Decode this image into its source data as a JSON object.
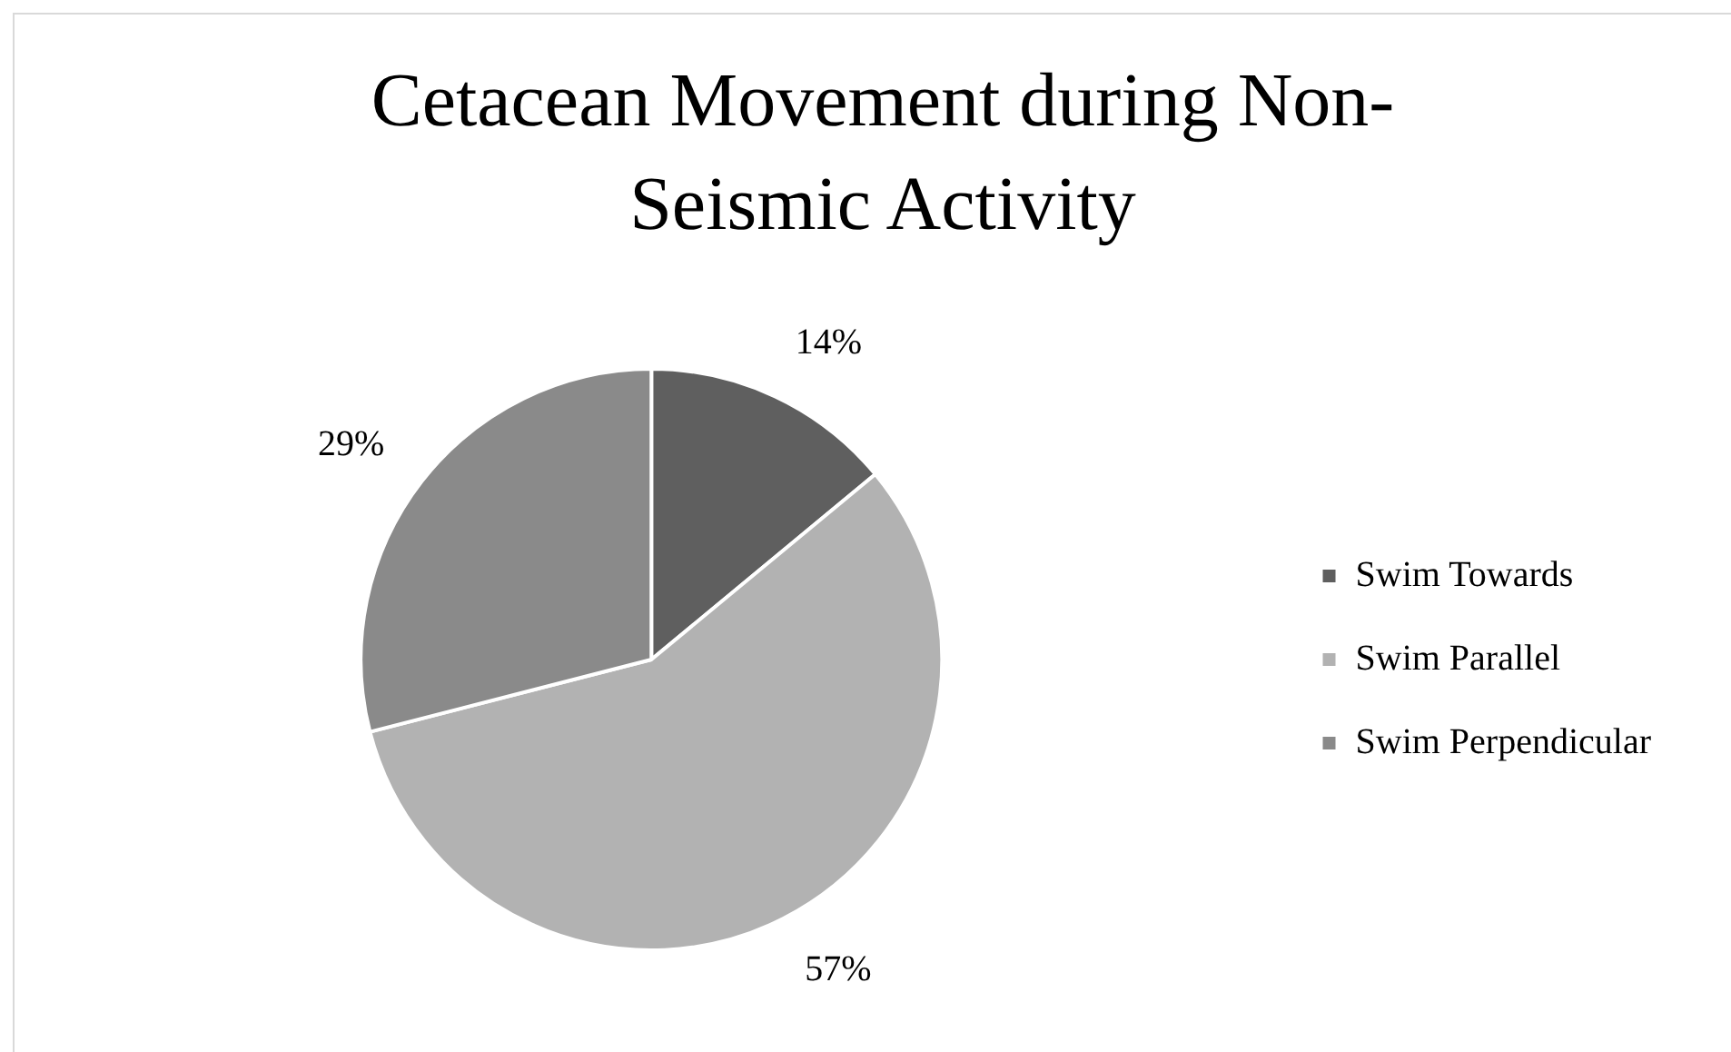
{
  "chart_data": {
    "type": "pie",
    "title": "Cetacean Movement during Non-Seismic Activity",
    "categories": [
      "Swim Towards",
      "Swim Parallel",
      "Swim Perpendicular"
    ],
    "values": [
      14,
      57,
      29
    ],
    "colors": [
      "#5f5f5f",
      "#b2b2b2",
      "#8a8a8a"
    ],
    "value_labels": [
      "14%",
      "57%",
      "29%"
    ],
    "legend": "right"
  }
}
